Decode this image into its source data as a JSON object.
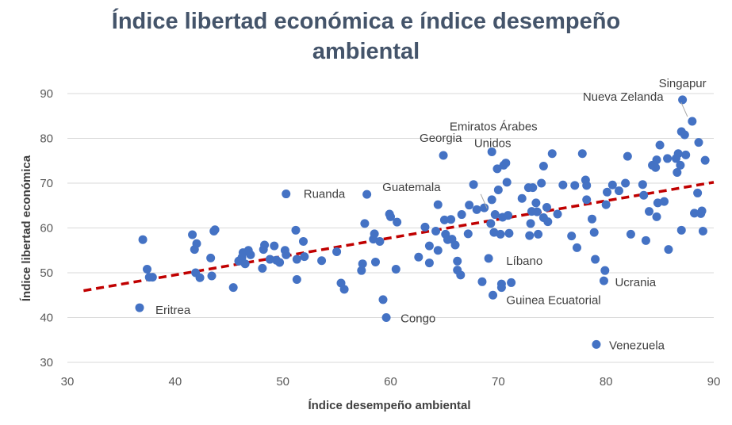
{
  "chart_data": {
    "type": "scatter",
    "title_line1": "Índice libertad económica e índice desempeño",
    "title_line2": "ambiental",
    "xlabel": "Índice desempeño ambiental",
    "ylabel": "Índice libertad económica",
    "xlim": [
      30,
      90
    ],
    "ylim": [
      30,
      90
    ],
    "xticks": [
      "30",
      "40",
      "50",
      "60",
      "70",
      "80",
      "90"
    ],
    "yticks": [
      "30",
      "40",
      "50",
      "60",
      "70",
      "80",
      "90"
    ],
    "grid": "horizontal",
    "marker_color": "#4472c4",
    "trendline": {
      "style": "dashed",
      "color": "#c00000",
      "start": [
        31.5,
        46.0
      ],
      "end": [
        90,
        70.2
      ]
    },
    "points": [
      [
        36.7,
        42.2
      ],
      [
        37.0,
        57.4
      ],
      [
        37.4,
        50.8
      ],
      [
        37.6,
        49.0
      ],
      [
        37.9,
        49.0
      ],
      [
        41.6,
        58.5
      ],
      [
        41.8,
        55.2
      ],
      [
        41.9,
        50.0
      ],
      [
        42.0,
        56.5
      ],
      [
        42.3,
        48.9
      ],
      [
        43.3,
        53.3
      ],
      [
        43.4,
        49.3
      ],
      [
        43.6,
        59.3
      ],
      [
        43.7,
        59.6
      ],
      [
        45.4,
        46.7
      ],
      [
        45.9,
        52.6
      ],
      [
        46.2,
        53.4
      ],
      [
        46.3,
        54.5
      ],
      [
        46.5,
        52.0
      ],
      [
        46.8,
        55.0
      ],
      [
        47.0,
        54.0
      ],
      [
        48.1,
        51.0
      ],
      [
        48.2,
        55.2
      ],
      [
        48.3,
        56.2
      ],
      [
        48.8,
        53.0
      ],
      [
        49.2,
        56.0
      ],
      [
        49.4,
        52.8
      ],
      [
        49.7,
        52.3
      ],
      [
        50.2,
        55.0
      ],
      [
        50.3,
        67.6
      ],
      [
        50.3,
        54.0
      ],
      [
        51.2,
        59.5
      ],
      [
        51.3,
        53.0
      ],
      [
        51.3,
        48.5
      ],
      [
        51.9,
        57.0
      ],
      [
        52.0,
        53.6
      ],
      [
        53.6,
        52.7
      ],
      [
        55.0,
        54.7
      ],
      [
        55.4,
        47.7
      ],
      [
        55.7,
        46.3
      ],
      [
        57.3,
        50.5
      ],
      [
        57.4,
        52.0
      ],
      [
        57.6,
        61.0
      ],
      [
        57.8,
        67.5
      ],
      [
        58.4,
        57.5
      ],
      [
        58.5,
        58.7
      ],
      [
        58.6,
        52.4
      ],
      [
        59.0,
        57.0
      ],
      [
        59.3,
        44.0
      ],
      [
        59.6,
        40.0
      ],
      [
        59.9,
        63.1
      ],
      [
        60.0,
        62.5
      ],
      [
        60.5,
        50.8
      ],
      [
        60.6,
        61.3
      ],
      [
        62.6,
        53.5
      ],
      [
        63.2,
        60.2
      ],
      [
        63.6,
        56.0
      ],
      [
        63.6,
        52.2
      ],
      [
        64.2,
        59.3
      ],
      [
        64.4,
        65.2
      ],
      [
        64.4,
        55.0
      ],
      [
        64.9,
        76.2
      ],
      [
        65.0,
        61.8
      ],
      [
        65.1,
        58.6
      ],
      [
        65.3,
        57.4
      ],
      [
        65.6,
        61.9
      ],
      [
        65.7,
        57.5
      ],
      [
        66.0,
        56.2
      ],
      [
        66.2,
        50.6
      ],
      [
        66.2,
        52.6
      ],
      [
        66.5,
        49.5
      ],
      [
        66.6,
        63.0
      ],
      [
        67.2,
        58.7
      ],
      [
        67.3,
        65.1
      ],
      [
        67.7,
        69.7
      ],
      [
        68.0,
        64.1
      ],
      [
        68.5,
        48.0
      ],
      [
        68.7,
        64.5
      ],
      [
        69.1,
        53.2
      ],
      [
        69.3,
        61.0
      ],
      [
        69.4,
        77.0
      ],
      [
        69.4,
        66.3
      ],
      [
        69.5,
        45.0
      ],
      [
        69.6,
        59.0
      ],
      [
        69.7,
        63.0
      ],
      [
        69.9,
        73.2
      ],
      [
        70.0,
        68.5
      ],
      [
        70.2,
        58.6
      ],
      [
        70.3,
        47.5
      ],
      [
        70.3,
        46.7
      ],
      [
        70.4,
        62.4
      ],
      [
        70.5,
        74.0
      ],
      [
        70.7,
        74.5
      ],
      [
        70.8,
        70.2
      ],
      [
        70.9,
        62.8
      ],
      [
        71.0,
        58.8
      ],
      [
        71.2,
        47.8
      ],
      [
        72.2,
        66.6
      ],
      [
        72.8,
        69.0
      ],
      [
        72.9,
        58.3
      ],
      [
        73.0,
        61.0
      ],
      [
        73.1,
        63.7
      ],
      [
        73.2,
        69.0
      ],
      [
        73.5,
        65.6
      ],
      [
        73.6,
        63.6
      ],
      [
        73.7,
        58.6
      ],
      [
        74.0,
        70.0
      ],
      [
        74.2,
        73.8
      ],
      [
        74.2,
        62.3
      ],
      [
        74.5,
        64.6
      ],
      [
        74.6,
        61.4
      ],
      [
        75.0,
        76.6
      ],
      [
        75.5,
        63.1
      ],
      [
        76.0,
        69.6
      ],
      [
        76.8,
        58.2
      ],
      [
        77.1,
        69.5
      ],
      [
        77.3,
        55.6
      ],
      [
        77.8,
        76.6
      ],
      [
        78.1,
        70.7
      ],
      [
        78.2,
        69.5
      ],
      [
        78.2,
        66.3
      ],
      [
        78.7,
        62.0
      ],
      [
        78.9,
        59.0
      ],
      [
        79.0,
        53.0
      ],
      [
        79.1,
        34.0
      ],
      [
        79.8,
        48.2
      ],
      [
        79.9,
        50.5
      ],
      [
        80.0,
        65.2
      ],
      [
        80.1,
        68.0
      ],
      [
        80.6,
        69.6
      ],
      [
        81.2,
        68.3
      ],
      [
        81.8,
        70.0
      ],
      [
        82.0,
        76.0
      ],
      [
        82.3,
        58.6
      ],
      [
        83.4,
        69.7
      ],
      [
        83.5,
        67.3
      ],
      [
        83.7,
        57.2
      ],
      [
        84.0,
        63.7
      ],
      [
        84.3,
        74.0
      ],
      [
        84.6,
        73.5
      ],
      [
        84.7,
        62.5
      ],
      [
        84.7,
        75.2
      ],
      [
        84.8,
        65.6
      ],
      [
        85.0,
        78.5
      ],
      [
        85.4,
        65.9
      ],
      [
        85.7,
        75.5
      ],
      [
        85.8,
        55.2
      ],
      [
        86.5,
        75.5
      ],
      [
        86.6,
        72.4
      ],
      [
        86.7,
        76.6
      ],
      [
        86.9,
        74.0
      ],
      [
        87.0,
        81.5
      ],
      [
        87.0,
        59.5
      ],
      [
        87.1,
        88.6
      ],
      [
        87.3,
        80.8
      ],
      [
        87.4,
        76.3
      ],
      [
        88.0,
        83.8
      ],
      [
        88.2,
        63.3
      ],
      [
        88.5,
        67.8
      ],
      [
        88.6,
        79.1
      ],
      [
        88.8,
        63.2
      ],
      [
        88.9,
        63.8
      ],
      [
        89.0,
        59.3
      ],
      [
        89.2,
        75.1
      ]
    ],
    "annotations": [
      {
        "text": "Singapur",
        "x": 87.1,
        "y": 88.6
      },
      {
        "text": "Nueva Zelanda",
        "x": 88.0,
        "y": 83.8
      },
      {
        "text": "Emiratos Árabes",
        "x": 74.6,
        "y": 78.8
      },
      {
        "text": "Unidos",
        "x": 74.6,
        "y": 78.8
      },
      {
        "text": "Georgia",
        "x": 64.9,
        "y": 76.2
      },
      {
        "text": "Guatemala",
        "x": 69.4,
        "y": 63.3
      },
      {
        "text": "Ruanda",
        "x": 50.3,
        "y": 67.6
      },
      {
        "text": "Líbano",
        "x": 70.0,
        "y": 53.2
      },
      {
        "text": "Ucrania",
        "x": 79.8,
        "y": 48.2
      },
      {
        "text": "Eritrea",
        "x": 36.7,
        "y": 42.2
      },
      {
        "text": "Guinea Ecuatorial",
        "x": 70.3,
        "y": 46.7
      },
      {
        "text": "Congo",
        "x": 59.6,
        "y": 40.0
      },
      {
        "text": "Venezuela",
        "x": 79.1,
        "y": 34.0
      }
    ]
  }
}
